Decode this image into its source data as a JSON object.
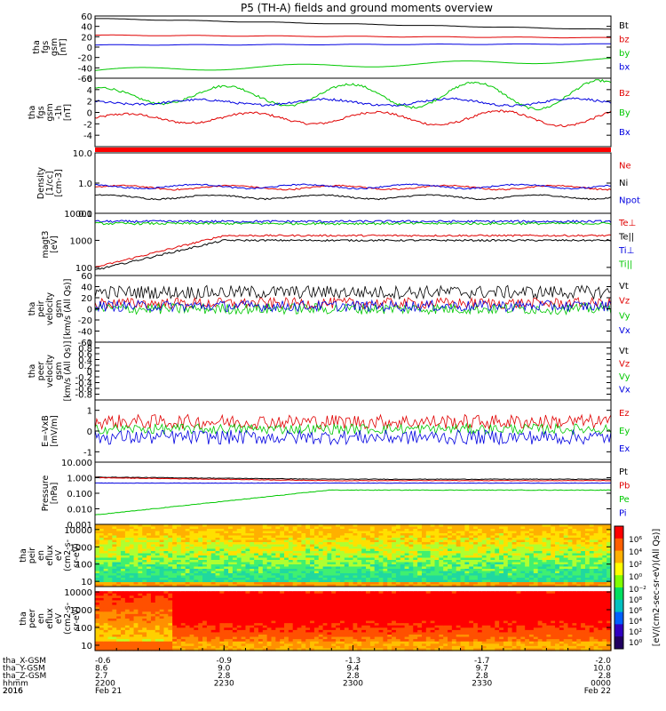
{
  "title": "P5 (TH-A) fields and ground moments overview",
  "date_year": "2016",
  "chart_data": [
    {
      "type": "line",
      "ylabel": [
        "tha",
        "fgs",
        "gsm",
        "[nT]"
      ],
      "ylim": [
        -60,
        60
      ],
      "yticks": [
        -60,
        -40,
        -20,
        0,
        20,
        40,
        60
      ],
      "series": [
        {
          "name": "Bt",
          "color": "#000000",
          "start": 55,
          "end": 34
        },
        {
          "name": "bz",
          "color": "#e00000",
          "start": 23,
          "end": 18
        },
        {
          "name": "by",
          "color": "#00c800",
          "start": -45,
          "end": -25
        },
        {
          "name": "bx",
          "color": "#0000e0",
          "start": 4,
          "end": 6
        }
      ]
    },
    {
      "type": "line",
      "ylabel": [
        "tha",
        "fgs",
        "gsm",
        "-1h",
        "[nT]"
      ],
      "ylim": [
        -6,
        6
      ],
      "yticks": [
        -4,
        -2,
        0,
        2,
        4,
        6
      ],
      "series": [
        {
          "name": "Bz",
          "color": "#e00000",
          "mean": -1.0,
          "amp": 1.4
        },
        {
          "name": "By",
          "color": "#00c800",
          "mean": 3.0,
          "amp": 2.6
        },
        {
          "name": "Bx",
          "color": "#0000e0",
          "mean": 1.8,
          "amp": 0.7
        }
      ]
    },
    {
      "type": "line",
      "scale": "log",
      "ylabel": [
        "Density",
        "[1/cc]",
        "[cm-3]"
      ],
      "ylim": [
        0.1,
        10
      ],
      "yticks": [
        0.1,
        1.0,
        10.0
      ],
      "ytick_labels": [
        "0.1",
        "1.0",
        "10.0"
      ],
      "series": [
        {
          "name": "Ne",
          "color": "#e00000",
          "value": 0.72
        },
        {
          "name": "Ni",
          "color": "#000000",
          "value": 0.35
        },
        {
          "name": "Npot",
          "color": "#0000e0",
          "value": 0.78
        }
      ]
    },
    {
      "type": "line",
      "scale": "log",
      "ylabel": [
        "magt3",
        "[eV]"
      ],
      "ylim": [
        50,
        10000
      ],
      "yticks": [
        100,
        1000,
        10000
      ],
      "ytick_labels": [
        "100",
        "1000",
        "10000"
      ],
      "series": [
        {
          "name": "Te⊥",
          "color": "#e00000",
          "start": 100,
          "end": 1500
        },
        {
          "name": "Te||",
          "color": "#000000",
          "start": 80,
          "end": 1000
        },
        {
          "name": "Ti⊥",
          "color": "#0000e0",
          "value": 5000
        },
        {
          "name": "Ti||",
          "color": "#00c800",
          "value": 4200
        }
      ]
    },
    {
      "type": "line",
      "ylabel": [
        "tha",
        "peir",
        "velocity",
        "gsm",
        "[km/s (All Qs)]"
      ],
      "ylim": [
        -60,
        60
      ],
      "yticks": [
        -60,
        -40,
        -20,
        0,
        20,
        40,
        60
      ],
      "series": [
        {
          "name": "Vt",
          "color": "#000000",
          "mean": 30,
          "noise": 12
        },
        {
          "name": "Vz",
          "color": "#e00000",
          "mean": 10,
          "noise": 10
        },
        {
          "name": "Vy",
          "color": "#00c800",
          "mean": 0,
          "noise": 10
        },
        {
          "name": "Vx",
          "color": "#0000e0",
          "mean": 5,
          "noise": 10
        }
      ]
    },
    {
      "type": "line",
      "ylabel": [
        "tha",
        "peer",
        "velocity",
        "gsm",
        "[km/s (All Qs)]"
      ],
      "ylim": [
        -1,
        1
      ],
      "yticks": [
        -0.8,
        -0.6,
        -0.4,
        -0.2,
        0.0,
        0.2,
        0.4,
        0.6,
        0.8,
        1.0
      ],
      "series": [
        {
          "name": "Vt",
          "color": "#000000"
        },
        {
          "name": "Vz",
          "color": "#e00000"
        },
        {
          "name": "Vy",
          "color": "#00c800"
        },
        {
          "name": "Vx",
          "color": "#0000e0"
        }
      ]
    },
    {
      "type": "line",
      "ylabel": [
        "E=-VxB",
        "[mV/m]"
      ],
      "ylim": [
        -1.5,
        1.5
      ],
      "yticks": [
        -1,
        0,
        1
      ],
      "series": [
        {
          "name": "Ez",
          "color": "#e00000",
          "mean": 0.45,
          "noise": 0.35
        },
        {
          "name": "Ey",
          "color": "#00c800",
          "mean": 0.1,
          "noise": 0.25
        },
        {
          "name": "Ex",
          "color": "#0000e0",
          "mean": -0.3,
          "noise": 0.35
        }
      ]
    },
    {
      "type": "line",
      "scale": "log",
      "ylabel": [
        "Pressure",
        "[nPa]"
      ],
      "ylim": [
        0.001,
        10
      ],
      "yticks": [
        0.001,
        0.01,
        0.1,
        1,
        10
      ],
      "ytick_labels": [
        "0.001",
        "0.010",
        "0.100",
        "1.000",
        "10.000"
      ],
      "series": [
        {
          "name": "Pt",
          "color": "#000000",
          "start": 1.1,
          "end": 0.8
        },
        {
          "name": "Pb",
          "color": "#e00000",
          "start": 1.0,
          "end": 0.65
        },
        {
          "name": "Pe",
          "color": "#00c800",
          "start": 0.004,
          "end": 0.16
        },
        {
          "name": "Pi",
          "color": "#0000e0",
          "value": 0.45
        }
      ]
    },
    {
      "type": "heatmap",
      "scale": "log",
      "ylabel": [
        "tha",
        "peir",
        "en",
        "eflux",
        "eV",
        "(cm2-s-",
        "sr-eV)"
      ],
      "ylim": [
        5,
        20000
      ],
      "yticks": [
        10,
        100,
        1000,
        10000
      ],
      "ytick_labels": [
        "10",
        "100",
        "1000",
        "10000"
      ]
    },
    {
      "type": "heatmap",
      "scale": "log",
      "ylabel": [
        "tha",
        "peer",
        "en",
        "eflux",
        "eV",
        "(cm2-s-",
        "sr-eV)"
      ],
      "ylim": [
        5,
        20000
      ],
      "yticks": [
        10,
        100,
        1000,
        10000
      ],
      "ytick_labels": [
        "10",
        "100",
        "1000",
        "10000"
      ]
    }
  ],
  "legends": [
    [
      "Bt",
      "bz",
      "by",
      "bx"
    ],
    [
      "Bz",
      "By",
      "Bx"
    ],
    [
      "Ne",
      "Ni",
      "Npot"
    ],
    [
      "Te⊥",
      "Te||",
      "Ti⊥",
      "Ti||"
    ],
    [
      "Vt",
      "Vz",
      "Vy",
      "Vx"
    ],
    [
      "Vt",
      "Vz",
      "Vy",
      "Vx"
    ],
    [
      "Ez",
      "Ey",
      "Ex"
    ],
    [
      "Pt",
      "Pb",
      "Pe",
      "Pi"
    ]
  ],
  "colorbar": {
    "label": "[eV/(cm2-sec-sr-eV)(All Qs)]",
    "top_ticks": [
      "10⁶",
      "10⁴",
      "10²",
      "10⁰",
      "10⁻²"
    ],
    "bottom_ticks": [
      "10⁸",
      "10⁶",
      "10⁴",
      "10²",
      "10⁰"
    ]
  },
  "x_axis": {
    "row_labels": [
      "tha_X-GSM",
      "tha_Y-GSM",
      "tha_Z-GSM",
      "hhmm",
      "2016"
    ],
    "columns": [
      {
        "x_gsm": "-0.6",
        "y_gsm": "8.6",
        "z_gsm": "2.7",
        "hhmm": "2200",
        "date": "Feb 21"
      },
      {
        "x_gsm": "-0.9",
        "y_gsm": "9.0",
        "z_gsm": "2.8",
        "hhmm": "2230",
        "date": ""
      },
      {
        "x_gsm": "-1.3",
        "y_gsm": "9.4",
        "z_gsm": "2.8",
        "hhmm": "2300",
        "date": ""
      },
      {
        "x_gsm": "-1.7",
        "y_gsm": "9.7",
        "z_gsm": "2.8",
        "hhmm": "2330",
        "date": ""
      },
      {
        "x_gsm": "-2.0",
        "y_gsm": "10.0",
        "z_gsm": "2.8",
        "hhmm": "0000",
        "date": "Feb 22"
      }
    ]
  }
}
